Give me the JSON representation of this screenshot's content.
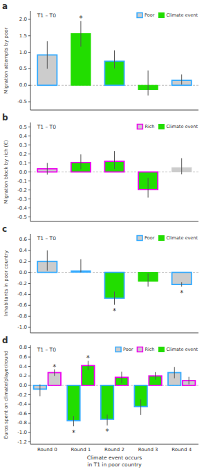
{
  "chart_data": [
    {
      "type": "bar",
      "panel_label": "a",
      "title": "T1 – T0",
      "y_label": "Migration attempts by poor",
      "categories": [
        null,
        null,
        null,
        null,
        null
      ],
      "tick_labels": "y",
      "ylim": [
        -0.75,
        2.25
      ],
      "yticks": [
        -0.5,
        {
          "value": 0,
          "label": "0.0"
        },
        0.5,
        {
          "value": 1,
          "label": "1.0"
        },
        1.5,
        {
          "value": 2,
          "label": "2.0"
        }
      ],
      "grid": false,
      "legend": "upper right",
      "legend_entries": [
        {
          "name": "Poor",
          "color": "#cccccc",
          "edge_color": "#33aaff"
        },
        {
          "name": "Climate event",
          "color": "#22dd00",
          "edge_color": "#22dd00"
        }
      ],
      "series": [
        {
          "values": [
            0.92,
            1.57,
            0.73,
            -0.13,
            0.15
          ],
          "err_low": [
            0.42,
            0.4,
            0.22,
            0.18,
            0.13
          ],
          "err_high": [
            0.42,
            0.38,
            0.33,
            0.58,
            0.18
          ],
          "colors": [
            "#cccccc",
            "#22dd00",
            "#22dd00",
            "#22dd00",
            "#cccccc"
          ],
          "edge_colors": [
            "#33aaff",
            "#22dd00",
            "#33aaff",
            "#22dd00",
            "#33aaff"
          ]
        }
      ],
      "annotations": [
        {
          "text": "*",
          "series": 0,
          "index": 1
        }
      ]
    },
    {
      "type": "bar",
      "panel_label": "b",
      "title": "T1 – T0",
      "y_label": "Migration block by rich (€)",
      "categories": [
        null,
        null,
        null,
        null,
        null
      ],
      "tick_labels": "y",
      "ylim": [
        -0.55,
        0.55
      ],
      "yticks": [
        -0.5,
        -0.4,
        -0.3,
        -0.2,
        -0.1,
        {
          "value": 0,
          "label": "0.0"
        },
        0.1,
        0.2,
        0.3,
        0.4,
        0.5
      ],
      "grid": false,
      "legend": "upper right",
      "legend_entries": [
        {
          "name": "Rich",
          "color": "#cccccc",
          "edge_color": "#ee00ee"
        },
        {
          "name": "Climate event",
          "color": "#22dd00",
          "edge_color": "#22dd00"
        }
      ],
      "series": [
        {
          "values": [
            0.035,
            0.105,
            0.118,
            -0.195,
            0.048
          ],
          "err_low": [
            0.065,
            0.075,
            0.085,
            0.09,
            0.075
          ],
          "err_high": [
            0.065,
            0.09,
            0.115,
            0.13,
            0.105
          ],
          "colors": [
            "#cccccc",
            "#22dd00",
            "#22dd00",
            "#22dd00",
            "#cccccc"
          ],
          "edge_colors": [
            "#ee00ee",
            "#ee00ee",
            "#ee00ee",
            "#ee00ee",
            "#cccccc"
          ]
        }
      ]
    },
    {
      "type": "bar",
      "panel_label": "c",
      "title": "T1 – T0",
      "y_label": "Inhabitants in poor country",
      "categories": [
        null,
        null,
        null,
        null,
        null
      ],
      "tick_labels": "y",
      "ylim": [
        -1.1,
        0.7
      ],
      "yticks": [
        {
          "value": -1,
          "label": "-1.0"
        },
        -0.8,
        -0.6,
        -0.4,
        -0.2,
        {
          "value": 0,
          "label": "0.0"
        },
        0.2,
        0.4,
        0.6
      ],
      "grid": false,
      "legend": "upper right",
      "legend_entries": [
        {
          "name": "Poor",
          "color": "#cccccc",
          "edge_color": "#33aaff"
        },
        {
          "name": "Climate event",
          "color": "#22dd00",
          "edge_color": "#22dd00"
        }
      ],
      "series": [
        {
          "values": [
            0.2,
            0.03,
            -0.47,
            -0.16,
            -0.22
          ],
          "err_low": [
            0.17,
            0.03,
            0.12,
            0.1,
            0.04
          ],
          "err_high": [
            0.2,
            0.21,
            0.12,
            0.14,
            0.04
          ],
          "colors": [
            "#cccccc",
            "#33aaff",
            "#22dd00",
            "#22dd00",
            "#cccccc"
          ],
          "edge_colors": [
            "#33aaff",
            "#33aaff",
            "#33aaff",
            "#22dd00",
            "#33aaff"
          ]
        }
      ],
      "annotations": [
        {
          "text": "*",
          "series": 0,
          "index": 2
        },
        {
          "text": "*",
          "series": 0,
          "index": 4
        }
      ]
    },
    {
      "type": "bar",
      "panel_label": "d",
      "title": "T1 – T0",
      "y_label": "Euros spent on climate/player/round",
      "x_label": "Climate event occurs\nin T1 in poor country",
      "categories": [
        "Round 0",
        "Round 1",
        "Round 2",
        "Round 3",
        "Round 4"
      ],
      "ylim": [
        -1.25,
        0.85
      ],
      "yticks": [
        -1.2,
        {
          "value": -1,
          "label": "-1.0"
        },
        -0.8,
        -0.6,
        -0.4,
        -0.2,
        {
          "value": 0,
          "label": "0.0"
        },
        0.2,
        0.4,
        0.6,
        0.8
      ],
      "grid": false,
      "legend": "upper right",
      "legend_entries": [
        {
          "name": "Poor",
          "color": "#cccccc",
          "edge_color": "#33aaff"
        },
        {
          "name": "Rich",
          "color": "#cccccc",
          "edge_color": "#ee00ee"
        },
        {
          "name": "Climate event",
          "color": "#22dd00",
          "edge_color": "#22dd00"
        }
      ],
      "series": [
        {
          "values": [
            -0.08,
            -0.75,
            -0.72,
            -0.45,
            0.27
          ],
          "err_low": [
            0.15,
            0.12,
            0.13,
            0.18,
            0.12
          ],
          "err_high": [
            0.1,
            0.1,
            0.1,
            0.15,
            0.12
          ],
          "colors": [
            "#cccccc",
            "#22dd00",
            "#22dd00",
            "#22dd00",
            "#cccccc"
          ],
          "edge_colors": [
            "#33aaff",
            "#33aaff",
            "#33aaff",
            "#33aaff",
            "#33aaff"
          ]
        },
        {
          "values": [
            0.27,
            0.42,
            0.17,
            0.2,
            0.1
          ],
          "err_low": [
            0.07,
            0.1,
            0.12,
            0.08,
            0.08
          ],
          "err_high": [
            0.07,
            0.1,
            0.12,
            0.08,
            0.08
          ],
          "colors": [
            "#cccccc",
            "#22dd00",
            "#22dd00",
            "#22dd00",
            "#cccccc"
          ],
          "edge_colors": [
            "#ee00ee",
            "#ee00ee",
            "#ee00ee",
            "#ee00ee",
            "#ee00ee"
          ]
        }
      ],
      "annotations": [
        {
          "text": "*",
          "series": 1,
          "index": 0
        },
        {
          "text": "*",
          "series": 0,
          "index": 1
        },
        {
          "text": "*",
          "series": 1,
          "index": 1
        },
        {
          "text": "*",
          "series": 0,
          "index": 2
        }
      ]
    }
  ]
}
